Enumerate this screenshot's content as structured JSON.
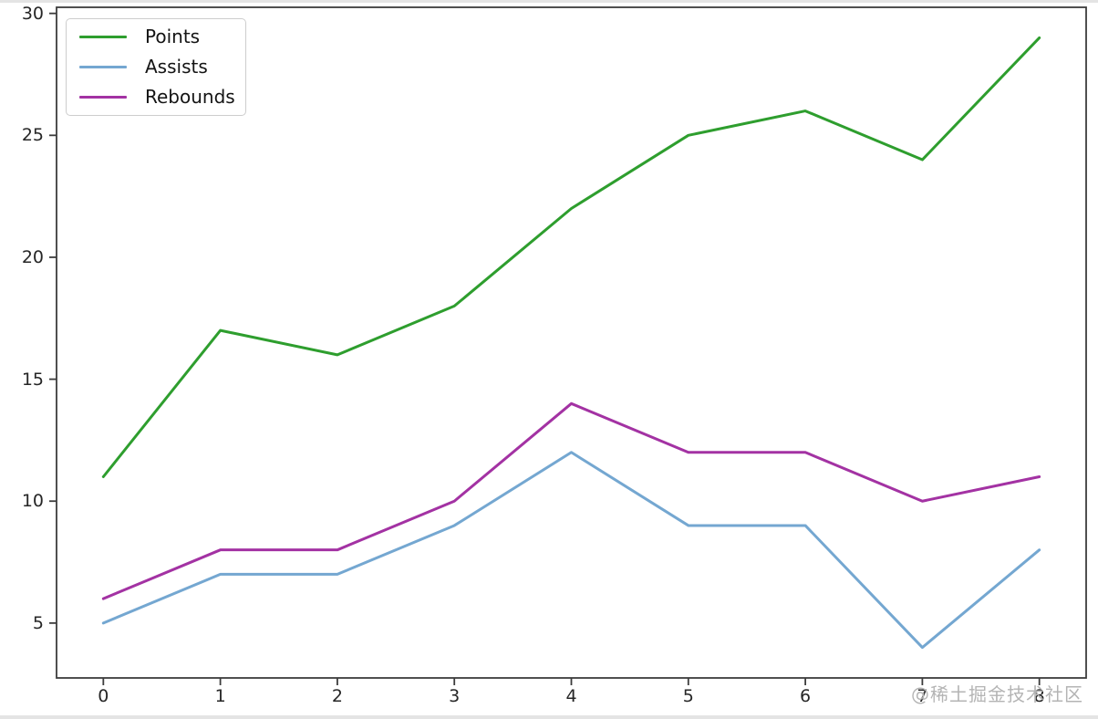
{
  "watermark": {
    "text": "@稀土掘金技术社区"
  },
  "colors": {
    "spine": "#3c3c3c",
    "tick_label": "#262626",
    "legend_border": "#cdcdcd",
    "watermark": "#b4b4b4",
    "background": "#ffffff"
  },
  "chart_data": {
    "type": "line",
    "title": "",
    "xlabel": "",
    "ylabel": "",
    "x": [
      0,
      1,
      2,
      3,
      4,
      5,
      6,
      7,
      8
    ],
    "series": [
      {
        "name": "Points",
        "color": "#2e9e2e",
        "values": [
          11,
          17,
          16,
          18,
          22,
          25,
          26,
          24,
          29
        ]
      },
      {
        "name": "Assists",
        "color": "#74a7d1",
        "values": [
          5,
          7,
          7,
          9,
          12,
          9,
          9,
          4,
          8
        ]
      },
      {
        "name": "Rebounds",
        "color": "#a332a3",
        "values": [
          6,
          8,
          8,
          10,
          14,
          12,
          12,
          10,
          11
        ]
      }
    ],
    "xticks": [
      "0",
      "1",
      "2",
      "3",
      "4",
      "5",
      "6",
      "7",
      "8"
    ],
    "yticks": [
      "5",
      "10",
      "15",
      "20",
      "25",
      "30"
    ],
    "ytick_values": [
      5,
      10,
      15,
      20,
      25,
      30
    ],
    "xtick_values": [
      0,
      1,
      2,
      3,
      4,
      5,
      6,
      7,
      8
    ],
    "xlim": [
      -0.4,
      8.4
    ],
    "ylim": [
      2.75,
      30.25
    ],
    "grid": false,
    "legend": {
      "position": "upper left",
      "entries": [
        "Points",
        "Assists",
        "Rebounds"
      ]
    }
  }
}
